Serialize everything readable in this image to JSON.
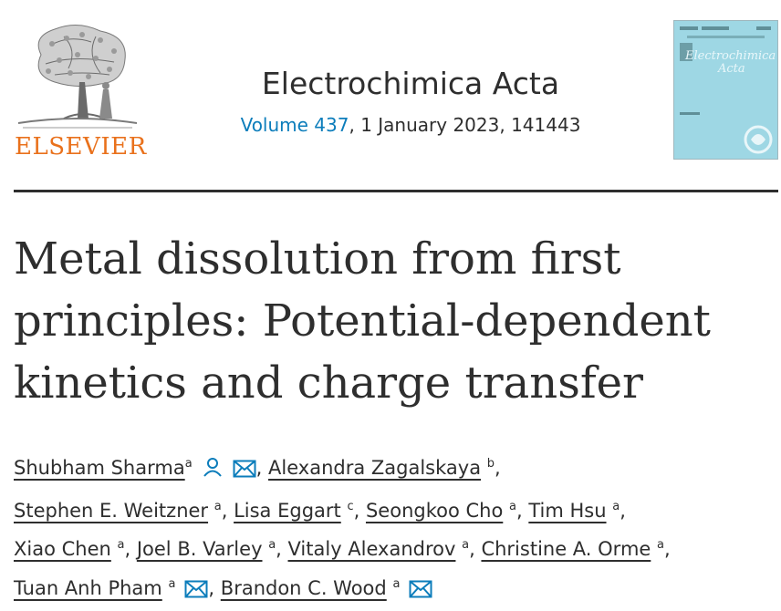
{
  "publisher": {
    "name": "ELSEVIER"
  },
  "journal": {
    "title": "Electrochimica Acta",
    "volume_link": "Volume 437",
    "citation_rest": ", 1 January 2023, 141443"
  },
  "cover": {
    "title_lines": [
      "Electrochimica",
      "Acta"
    ]
  },
  "article": {
    "title": "Metal dissolution from first principles: Potential-dependent kinetics and charge transfer"
  },
  "authors": [
    {
      "name": "Shubham Sharma",
      "aff": "a",
      "icons": [
        "person-icon",
        "email-icon"
      ]
    },
    {
      "name": "Alexandra Zagalskaya",
      "aff": "b",
      "icons": []
    },
    {
      "name": "Stephen E. Weitzner",
      "aff": "a",
      "icons": []
    },
    {
      "name": "Lisa Eggart",
      "aff": "c",
      "icons": []
    },
    {
      "name": "Seongkoo Cho",
      "aff": "a",
      "icons": []
    },
    {
      "name": "Tim Hsu",
      "aff": "a",
      "icons": []
    },
    {
      "name": "Xiao Chen",
      "aff": "a",
      "icons": []
    },
    {
      "name": "Joel B. Varley",
      "aff": "a",
      "icons": []
    },
    {
      "name": "Vitaly Alexandrov",
      "aff": "a",
      "icons": []
    },
    {
      "name": "Christine A. Orme",
      "aff": "a",
      "icons": []
    },
    {
      "name": "Tuan Anh Pham",
      "aff": "a",
      "icons": [
        "email-icon"
      ]
    },
    {
      "name": "Brandon C. Wood",
      "aff": "a",
      "icons": [
        "email-icon"
      ]
    }
  ],
  "colors": {
    "link": "#0c7dbb",
    "publisher": "#e9711c",
    "text": "#2e2e2e",
    "cover_bg": "#9ed7e4"
  }
}
